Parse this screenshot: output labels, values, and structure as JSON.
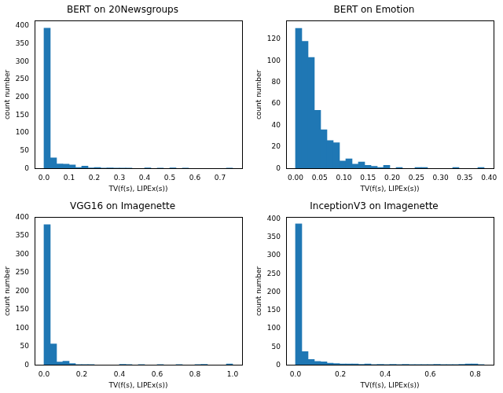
{
  "chart_data": [
    {
      "type": "histogram",
      "title": "BERT on 20Newsgroups",
      "x_label": "TV(f(s), LIPEx(s))",
      "y_label": "count number",
      "bins": [
        0,
        0.025,
        0.05,
        0.075,
        0.1,
        0.125,
        0.15,
        0.175,
        0.2,
        0.225,
        0.25,
        0.275,
        0.3,
        0.325,
        0.35,
        0.375,
        0.4,
        0.425,
        0.45,
        0.475,
        0.5,
        0.525,
        0.55,
        0.575,
        0.6,
        0.625,
        0.65,
        0.675,
        0.7,
        0.725,
        0.75
      ],
      "values": [
        393,
        30,
        13,
        12,
        10,
        3,
        7,
        2,
        3,
        1,
        2,
        1,
        1,
        1,
        0,
        0,
        2,
        0,
        1,
        0,
        2,
        0,
        1,
        0,
        0,
        0,
        0,
        0,
        0,
        1
      ],
      "color": "#1f77b4",
      "xlim": [
        -0.0375,
        0.7875
      ],
      "ylim": [
        0,
        414
      ],
      "xticks": [
        {
          "value": 0,
          "label": "0.0"
        },
        0.1,
        0.2,
        0.3,
        0.4,
        0.5,
        0.6,
        0.7
      ],
      "yticks": [
        0,
        50,
        100,
        150,
        200,
        250,
        300,
        350,
        400
      ],
      "grid": false
    },
    {
      "type": "histogram",
      "title": "BERT on Emotion",
      "x_label": "TV(f(s), LIPEx(s))",
      "y_label": "count number",
      "bins": [
        0,
        0.013,
        0.026,
        0.039,
        0.052,
        0.065,
        0.078,
        0.091,
        0.104,
        0.117,
        0.13,
        0.143,
        0.156,
        0.169,
        0.182,
        0.195,
        0.208,
        0.221,
        0.234,
        0.247,
        0.26,
        0.273,
        0.286,
        0.299,
        0.312,
        0.325,
        0.338,
        0.351,
        0.364,
        0.377,
        0.39
      ],
      "values": [
        130,
        118,
        103,
        54,
        36,
        26,
        24,
        7,
        9,
        4,
        6,
        3,
        2,
        1,
        3,
        0,
        1,
        0,
        0,
        1,
        1,
        0,
        0,
        0,
        0,
        1,
        0,
        0,
        0,
        1
      ],
      "color": "#1f77b4",
      "xlim": [
        -0.0195,
        0.4095
      ],
      "ylim": [
        0,
        137
      ],
      "xticks": [
        {
          "value": 0,
          "label": "0.00"
        },
        {
          "value": 0.05,
          "label": "0.05"
        },
        {
          "value": 0.1,
          "label": "0.10"
        },
        {
          "value": 0.15,
          "label": "0.15"
        },
        {
          "value": 0.2,
          "label": "0.20"
        },
        {
          "value": 0.25,
          "label": "0.25"
        },
        {
          "value": 0.3,
          "label": "0.30"
        },
        {
          "value": 0.35,
          "label": "0.35"
        },
        {
          "value": 0.4,
          "label": "0.40"
        }
      ],
      "yticks": [
        0,
        20,
        40,
        60,
        80,
        100,
        120
      ],
      "grid": false
    },
    {
      "type": "histogram",
      "title": "VGG16 on Imagenette",
      "x_label": "TV(f(s), LIPEx(s))",
      "y_label": "count number",
      "bins": [
        0,
        0.0333,
        0.0667,
        0.1,
        0.1333,
        0.1667,
        0.2,
        0.2333,
        0.2667,
        0.3,
        0.3333,
        0.3667,
        0.4,
        0.4333,
        0.4667,
        0.5,
        0.5333,
        0.5667,
        0.6,
        0.6333,
        0.6667,
        0.7,
        0.7333,
        0.7667,
        0.8,
        0.8333,
        0.8667,
        0.9,
        0.9333,
        0.9667,
        1.0
      ],
      "values": [
        380,
        57,
        8,
        10,
        4,
        1,
        1,
        1,
        0,
        0,
        0,
        0,
        2,
        1,
        0,
        1,
        0,
        0,
        1,
        0,
        0,
        1,
        0,
        0,
        1,
        2,
        0,
        0,
        0,
        3
      ],
      "color": "#1f77b4",
      "xlim": [
        -0.05,
        1.05
      ],
      "ylim": [
        0,
        400
      ],
      "xticks": [
        {
          "value": 0,
          "label": "0.0"
        },
        0.2,
        0.4,
        0.6,
        0.8,
        {
          "value": 1,
          "label": "1.0"
        }
      ],
      "yticks": [
        0,
        50,
        100,
        150,
        200,
        250,
        300,
        350,
        400
      ],
      "grid": false
    },
    {
      "type": "histogram",
      "title": "InceptionV3 on Imagenette",
      "x_label": "TV(f(s), LIPEx(s))",
      "y_label": "count number",
      "bins": [
        0,
        0.028,
        0.056,
        0.084,
        0.112,
        0.14,
        0.168,
        0.196,
        0.224,
        0.252,
        0.28,
        0.308,
        0.336,
        0.364,
        0.392,
        0.42,
        0.448,
        0.476,
        0.504,
        0.532,
        0.56,
        0.588,
        0.616,
        0.644,
        0.672,
        0.7,
        0.728,
        0.756,
        0.784,
        0.812,
        0.84
      ],
      "values": [
        387,
        37,
        15,
        10,
        9,
        5,
        4,
        3,
        3,
        3,
        2,
        3,
        1,
        2,
        1,
        2,
        1,
        2,
        1,
        1,
        1,
        1,
        2,
        1,
        1,
        1,
        2,
        3,
        3,
        1
      ],
      "color": "#1f77b4",
      "xlim": [
        -0.042,
        0.882
      ],
      "ylim": [
        0,
        405
      ],
      "xticks": [
        {
          "value": 0,
          "label": "0.0"
        },
        0.2,
        0.4,
        0.6,
        0.8
      ],
      "yticks": [
        0,
        50,
        100,
        150,
        200,
        250,
        300,
        350,
        400
      ],
      "grid": false
    }
  ]
}
